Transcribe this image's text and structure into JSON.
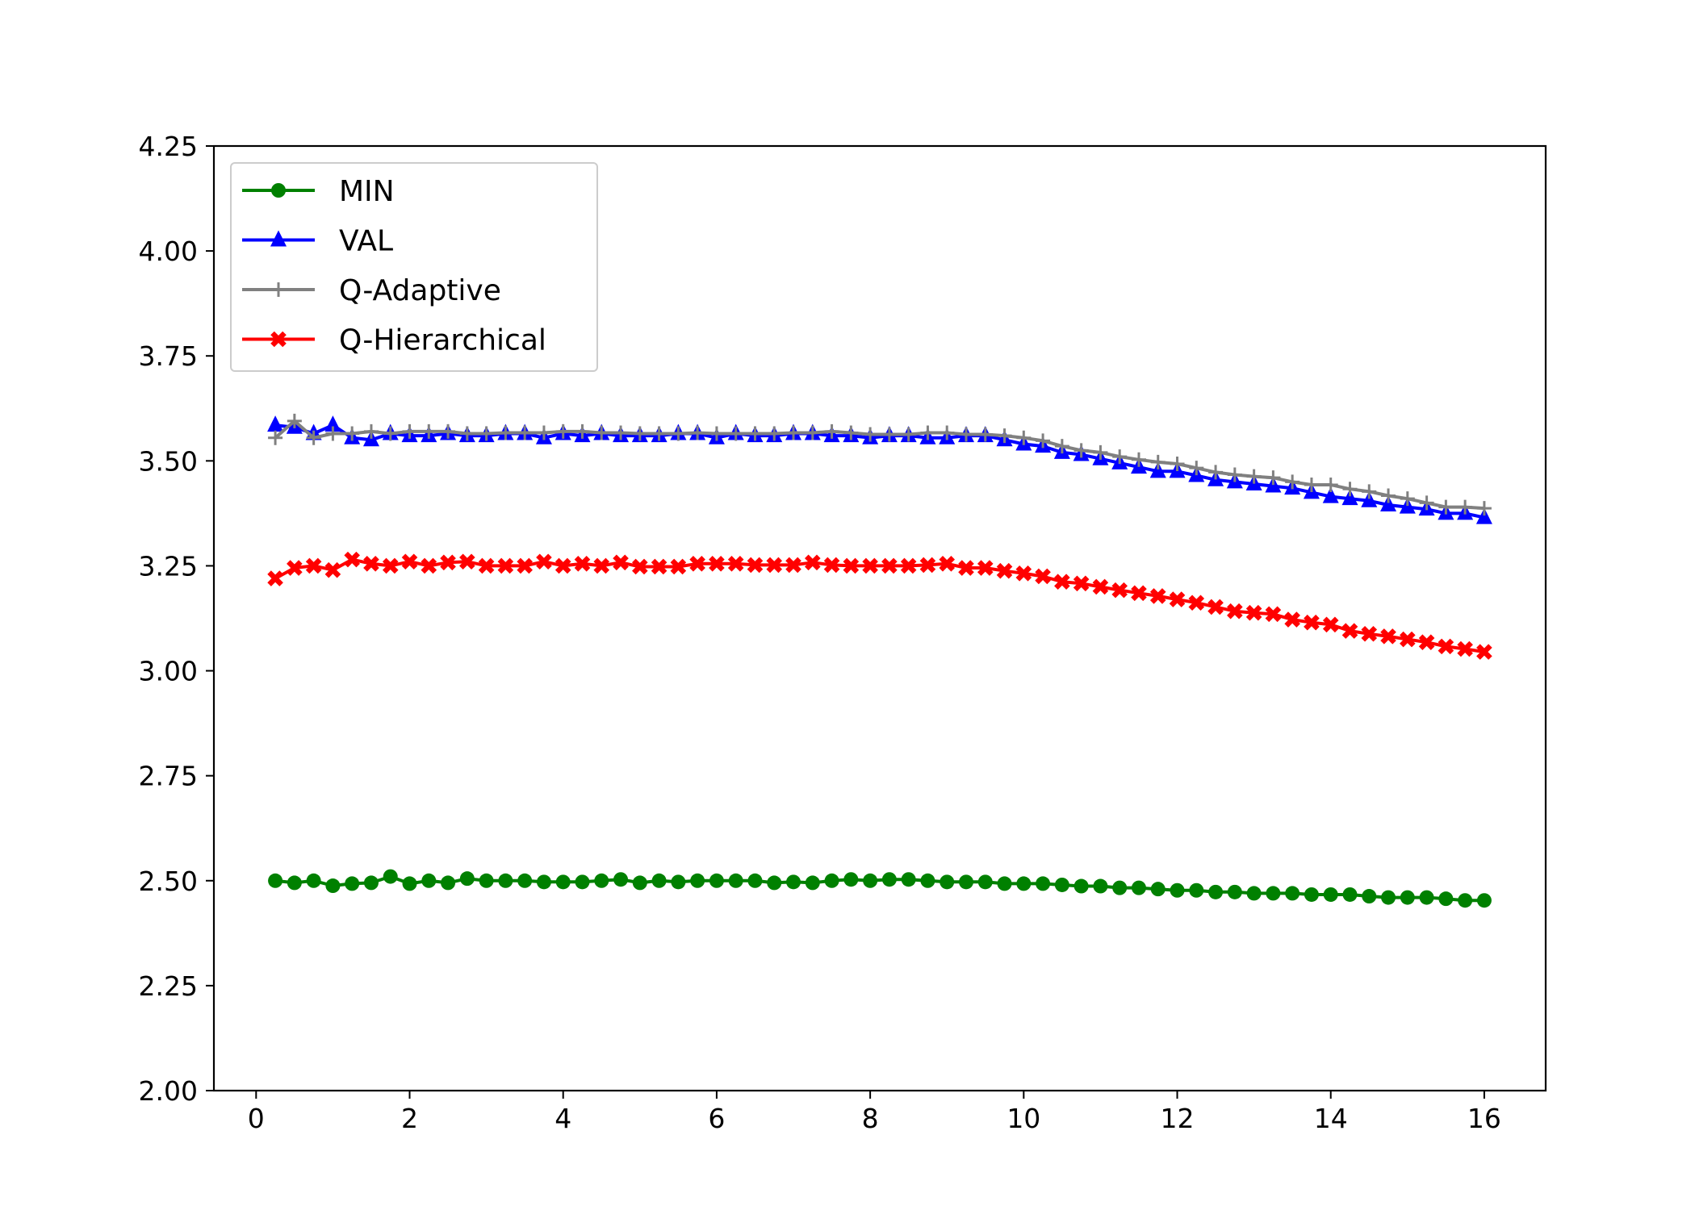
{
  "chart_data": {
    "type": "line",
    "title": "",
    "xlabel": "",
    "ylabel": "",
    "xlim": [
      -0.55,
      16.8
    ],
    "ylim": [
      2.0,
      4.25
    ],
    "x_ticks": [
      0,
      2,
      4,
      6,
      8,
      10,
      12,
      14,
      16
    ],
    "x_tick_labels": [
      "0",
      "2",
      "4",
      "6",
      "8",
      "10",
      "12",
      "14",
      "16"
    ],
    "y_ticks": [
      2.0,
      2.25,
      2.5,
      2.75,
      3.0,
      3.25,
      3.5,
      3.75,
      4.0,
      4.25
    ],
    "y_tick_labels": [
      "2.00",
      "2.25",
      "2.50",
      "2.75",
      "3.00",
      "3.25",
      "3.50",
      "3.75",
      "4.00",
      "4.25"
    ],
    "grid": false,
    "legend_position": "top-left",
    "x": [
      0.25,
      0.5,
      0.75,
      1.0,
      1.25,
      1.5,
      1.75,
      2.0,
      2.25,
      2.5,
      2.75,
      3.0,
      3.25,
      3.5,
      3.75,
      4.0,
      4.25,
      4.5,
      4.75,
      5.0,
      5.25,
      5.5,
      5.75,
      6.0,
      6.25,
      6.5,
      6.75,
      7.0,
      7.25,
      7.5,
      7.75,
      8.0,
      8.25,
      8.5,
      8.75,
      9.0,
      9.25,
      9.5,
      9.75,
      10.0,
      10.25,
      10.5,
      10.75,
      11.0,
      11.25,
      11.5,
      11.75,
      12.0,
      12.25,
      12.5,
      12.75,
      13.0,
      13.25,
      13.5,
      13.75,
      14.0,
      14.25,
      14.5,
      14.75,
      15.0,
      15.25,
      15.5,
      15.75,
      16.0
    ],
    "series": [
      {
        "name": "MIN",
        "color": "#008000",
        "marker": "circle",
        "values": [
          2.5,
          2.495,
          2.5,
          2.488,
          2.493,
          2.495,
          2.51,
          2.493,
          2.5,
          2.495,
          2.505,
          2.5,
          2.5,
          2.5,
          2.497,
          2.497,
          2.497,
          2.5,
          2.503,
          2.495,
          2.5,
          2.497,
          2.5,
          2.5,
          2.5,
          2.5,
          2.495,
          2.497,
          2.495,
          2.5,
          2.503,
          2.5,
          2.503,
          2.503,
          2.5,
          2.497,
          2.497,
          2.497,
          2.493,
          2.493,
          2.493,
          2.49,
          2.487,
          2.487,
          2.483,
          2.483,
          2.48,
          2.477,
          2.477,
          2.473,
          2.473,
          2.47,
          2.47,
          2.47,
          2.467,
          2.467,
          2.467,
          2.463,
          2.46,
          2.46,
          2.46,
          2.457,
          2.453,
          2.453
        ]
      },
      {
        "name": "VAL",
        "color": "#0000ff",
        "marker": "triangle",
        "values": [
          3.585,
          3.58,
          3.565,
          3.585,
          3.555,
          3.55,
          3.565,
          3.56,
          3.56,
          3.565,
          3.56,
          3.56,
          3.565,
          3.565,
          3.555,
          3.565,
          3.56,
          3.565,
          3.56,
          3.56,
          3.56,
          3.565,
          3.565,
          3.555,
          3.565,
          3.56,
          3.56,
          3.565,
          3.565,
          3.56,
          3.56,
          3.555,
          3.56,
          3.56,
          3.555,
          3.555,
          3.56,
          3.56,
          3.55,
          3.54,
          3.535,
          3.52,
          3.515,
          3.505,
          3.495,
          3.485,
          3.475,
          3.475,
          3.465,
          3.455,
          3.45,
          3.445,
          3.44,
          3.435,
          3.425,
          3.415,
          3.41,
          3.405,
          3.395,
          3.39,
          3.385,
          3.375,
          3.375,
          3.365
        ]
      },
      {
        "name": "Q-Adaptive",
        "color": "#808080",
        "marker": "plus",
        "values": [
          3.555,
          3.595,
          3.555,
          3.565,
          3.565,
          3.57,
          3.565,
          3.57,
          3.57,
          3.57,
          3.565,
          3.565,
          3.567,
          3.567,
          3.567,
          3.57,
          3.57,
          3.567,
          3.567,
          3.565,
          3.565,
          3.565,
          3.567,
          3.565,
          3.565,
          3.565,
          3.565,
          3.567,
          3.567,
          3.57,
          3.567,
          3.563,
          3.563,
          3.563,
          3.567,
          3.567,
          3.563,
          3.563,
          3.56,
          3.555,
          3.548,
          3.535,
          3.525,
          3.52,
          3.51,
          3.503,
          3.497,
          3.493,
          3.483,
          3.473,
          3.467,
          3.463,
          3.46,
          3.45,
          3.443,
          3.443,
          3.433,
          3.427,
          3.417,
          3.41,
          3.4,
          3.39,
          3.39,
          3.387
        ]
      },
      {
        "name": "Q-Hierarchical",
        "color": "#ff0000",
        "marker": "x-filled",
        "values": [
          3.22,
          3.245,
          3.25,
          3.24,
          3.265,
          3.255,
          3.25,
          3.26,
          3.25,
          3.258,
          3.26,
          3.25,
          3.25,
          3.25,
          3.26,
          3.25,
          3.255,
          3.25,
          3.258,
          3.248,
          3.248,
          3.248,
          3.255,
          3.255,
          3.255,
          3.252,
          3.252,
          3.252,
          3.258,
          3.252,
          3.25,
          3.25,
          3.25,
          3.25,
          3.252,
          3.255,
          3.245,
          3.245,
          3.238,
          3.232,
          3.225,
          3.212,
          3.208,
          3.2,
          3.192,
          3.185,
          3.178,
          3.17,
          3.162,
          3.152,
          3.142,
          3.138,
          3.135,
          3.122,
          3.115,
          3.11,
          3.095,
          3.088,
          3.082,
          3.075,
          3.068,
          3.058,
          3.052,
          3.045
        ]
      }
    ]
  }
}
